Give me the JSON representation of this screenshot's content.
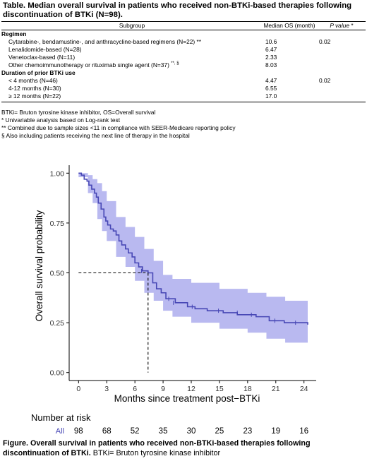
{
  "table": {
    "title": "Table. Median overall survival in patients who received non-BTKi-based therapies following discontinuation of BTKi (N=98).",
    "headers": {
      "subgroup": "Subgroup",
      "median_os": "Median OS (month)",
      "p_value": "P value",
      "p_value_mark": " *"
    },
    "groups": [
      {
        "label": "Regimen",
        "p_value": "0.02",
        "rows": [
          {
            "label": "Cytarabine-, bendamustine-, and anthracycline-based regimens (N=22) **",
            "os": "10.6"
          },
          {
            "label": "Lenalidomide-based (N=28)",
            "os": "6.47"
          },
          {
            "label": "Venetoclax-based (N=11)",
            "os": "2.33"
          },
          {
            "label": "Other chemoimmunotherapy or rituximab single agent (N=37)",
            "sup": "**, §",
            "os": "8.03"
          }
        ]
      },
      {
        "label": "Duration of prior BTKi use",
        "p_value": "0.02",
        "rows": [
          {
            "label": "< 4 months (N=46)",
            "os": "4.47"
          },
          {
            "label": "4-12 months (N=30)",
            "os": "6.55"
          },
          {
            "label": "≥ 12 months (N=22)",
            "os": "17.0"
          }
        ]
      }
    ],
    "footnotes": [
      "BTKi= Bruton tyrosine kinase inhibitor, OS=Overall survival",
      "* Univariable analysis based on Log-rank test",
      "** Combined due to sample sizes <11 in compliance with SEER-Medicare reporting policy",
      "§ Also including patients receiving the next line of therapy in the hospital"
    ]
  },
  "chart_data": {
    "type": "line",
    "xlabel": "Months since treatment post−BTKi",
    "ylabel": "Overall survival probability",
    "xlim": [
      -1,
      25.3
    ],
    "ylim": [
      -0.04,
      1.04
    ],
    "x_ticks": [
      0,
      3,
      6,
      9,
      12,
      15,
      18,
      21,
      24
    ],
    "y_ticks": [
      0.0,
      0.25,
      0.5,
      0.75,
      1.0
    ],
    "y_tick_labels": [
      "0.00",
      "0.25",
      "0.50",
      "0.75",
      "1.00"
    ],
    "line_color": "#4747b5",
    "ci_color": "#b9b9f0",
    "series": [
      {
        "survival": [
          [
            0,
            1.0
          ],
          [
            0.3,
            0.99
          ],
          [
            0.6,
            0.97
          ],
          [
            0.9,
            0.96
          ],
          [
            1.1,
            0.94
          ],
          [
            1.4,
            0.92
          ],
          [
            1.7,
            0.9
          ],
          [
            1.9,
            0.88
          ],
          [
            2.1,
            0.85
          ],
          [
            2.4,
            0.82
          ],
          [
            2.7,
            0.78
          ],
          [
            2.9,
            0.76
          ],
          [
            3.1,
            0.74
          ],
          [
            3.4,
            0.72
          ],
          [
            3.7,
            0.71
          ],
          [
            4.0,
            0.69
          ],
          [
            4.3,
            0.66
          ],
          [
            4.6,
            0.64
          ],
          [
            5.0,
            0.62
          ],
          [
            5.3,
            0.6
          ],
          [
            5.7,
            0.58
          ],
          [
            6.0,
            0.55
          ],
          [
            6.4,
            0.53
          ],
          [
            6.8,
            0.51
          ],
          [
            7.4,
            0.5
          ],
          [
            7.9,
            0.45
          ],
          [
            8.3,
            0.42
          ],
          [
            8.8,
            0.4
          ],
          [
            9.3,
            0.37
          ],
          [
            10.3,
            0.35
          ],
          [
            11.6,
            0.33
          ],
          [
            12.4,
            0.32
          ],
          [
            13.7,
            0.31
          ],
          [
            15.4,
            0.3
          ],
          [
            16.9,
            0.29
          ],
          [
            18.9,
            0.28
          ],
          [
            20.3,
            0.26
          ],
          [
            21.9,
            0.25
          ],
          [
            23.0,
            0.25
          ],
          [
            24.4,
            0.24
          ]
        ],
        "ci_upper": [
          [
            0,
            1.0
          ],
          [
            1.0,
            0.99
          ],
          [
            1.5,
            0.97
          ],
          [
            2.0,
            0.95
          ],
          [
            2.5,
            0.91
          ],
          [
            3.0,
            0.86
          ],
          [
            4.0,
            0.78
          ],
          [
            5.0,
            0.73
          ],
          [
            6.0,
            0.68
          ],
          [
            7.0,
            0.62
          ],
          [
            8.0,
            0.56
          ],
          [
            9.0,
            0.49
          ],
          [
            10.0,
            0.47
          ],
          [
            12.0,
            0.45
          ],
          [
            15.0,
            0.42
          ],
          [
            18.0,
            0.4
          ],
          [
            20.0,
            0.38
          ],
          [
            22.0,
            0.36
          ],
          [
            24.4,
            0.35
          ]
        ],
        "ci_lower": [
          [
            0,
            0.98
          ],
          [
            1.0,
            0.9
          ],
          [
            1.5,
            0.85
          ],
          [
            2.0,
            0.77
          ],
          [
            2.5,
            0.71
          ],
          [
            3.0,
            0.66
          ],
          [
            4.0,
            0.58
          ],
          [
            5.0,
            0.53
          ],
          [
            6.0,
            0.46
          ],
          [
            7.0,
            0.4
          ],
          [
            8.0,
            0.36
          ],
          [
            9.0,
            0.31
          ],
          [
            10.0,
            0.28
          ],
          [
            12.0,
            0.25
          ],
          [
            15.0,
            0.22
          ],
          [
            18.0,
            0.2
          ],
          [
            20.0,
            0.17
          ],
          [
            22.0,
            0.15
          ],
          [
            24.4,
            0.15
          ]
        ],
        "censor_marks": [
          [
            6.7,
            0.51
          ],
          [
            9.6,
            0.37
          ],
          [
            10.1,
            0.35
          ],
          [
            12.1,
            0.33
          ],
          [
            14.9,
            0.31
          ],
          [
            16.9,
            0.3
          ],
          [
            18.4,
            0.29
          ],
          [
            20.9,
            0.26
          ],
          [
            23.1,
            0.25
          ]
        ]
      }
    ],
    "median_reference": {
      "x": 7.4,
      "y": 0.5
    },
    "risk_table": {
      "title": "Number at risk",
      "strata_label": "All",
      "at_x": [
        0,
        3,
        6,
        9,
        12,
        15,
        18,
        21,
        24
      ],
      "counts": [
        "98",
        "68",
        "52",
        "35",
        "30",
        "25",
        "23",
        "19",
        "16"
      ]
    }
  },
  "figure": {
    "caption_bold": "Figure. Overall survival in patients who received non-BTKi-based therapies following discontinuation of BTKi.",
    "caption_rest": " BTKi= Bruton tyrosine kinase inhibitor"
  }
}
